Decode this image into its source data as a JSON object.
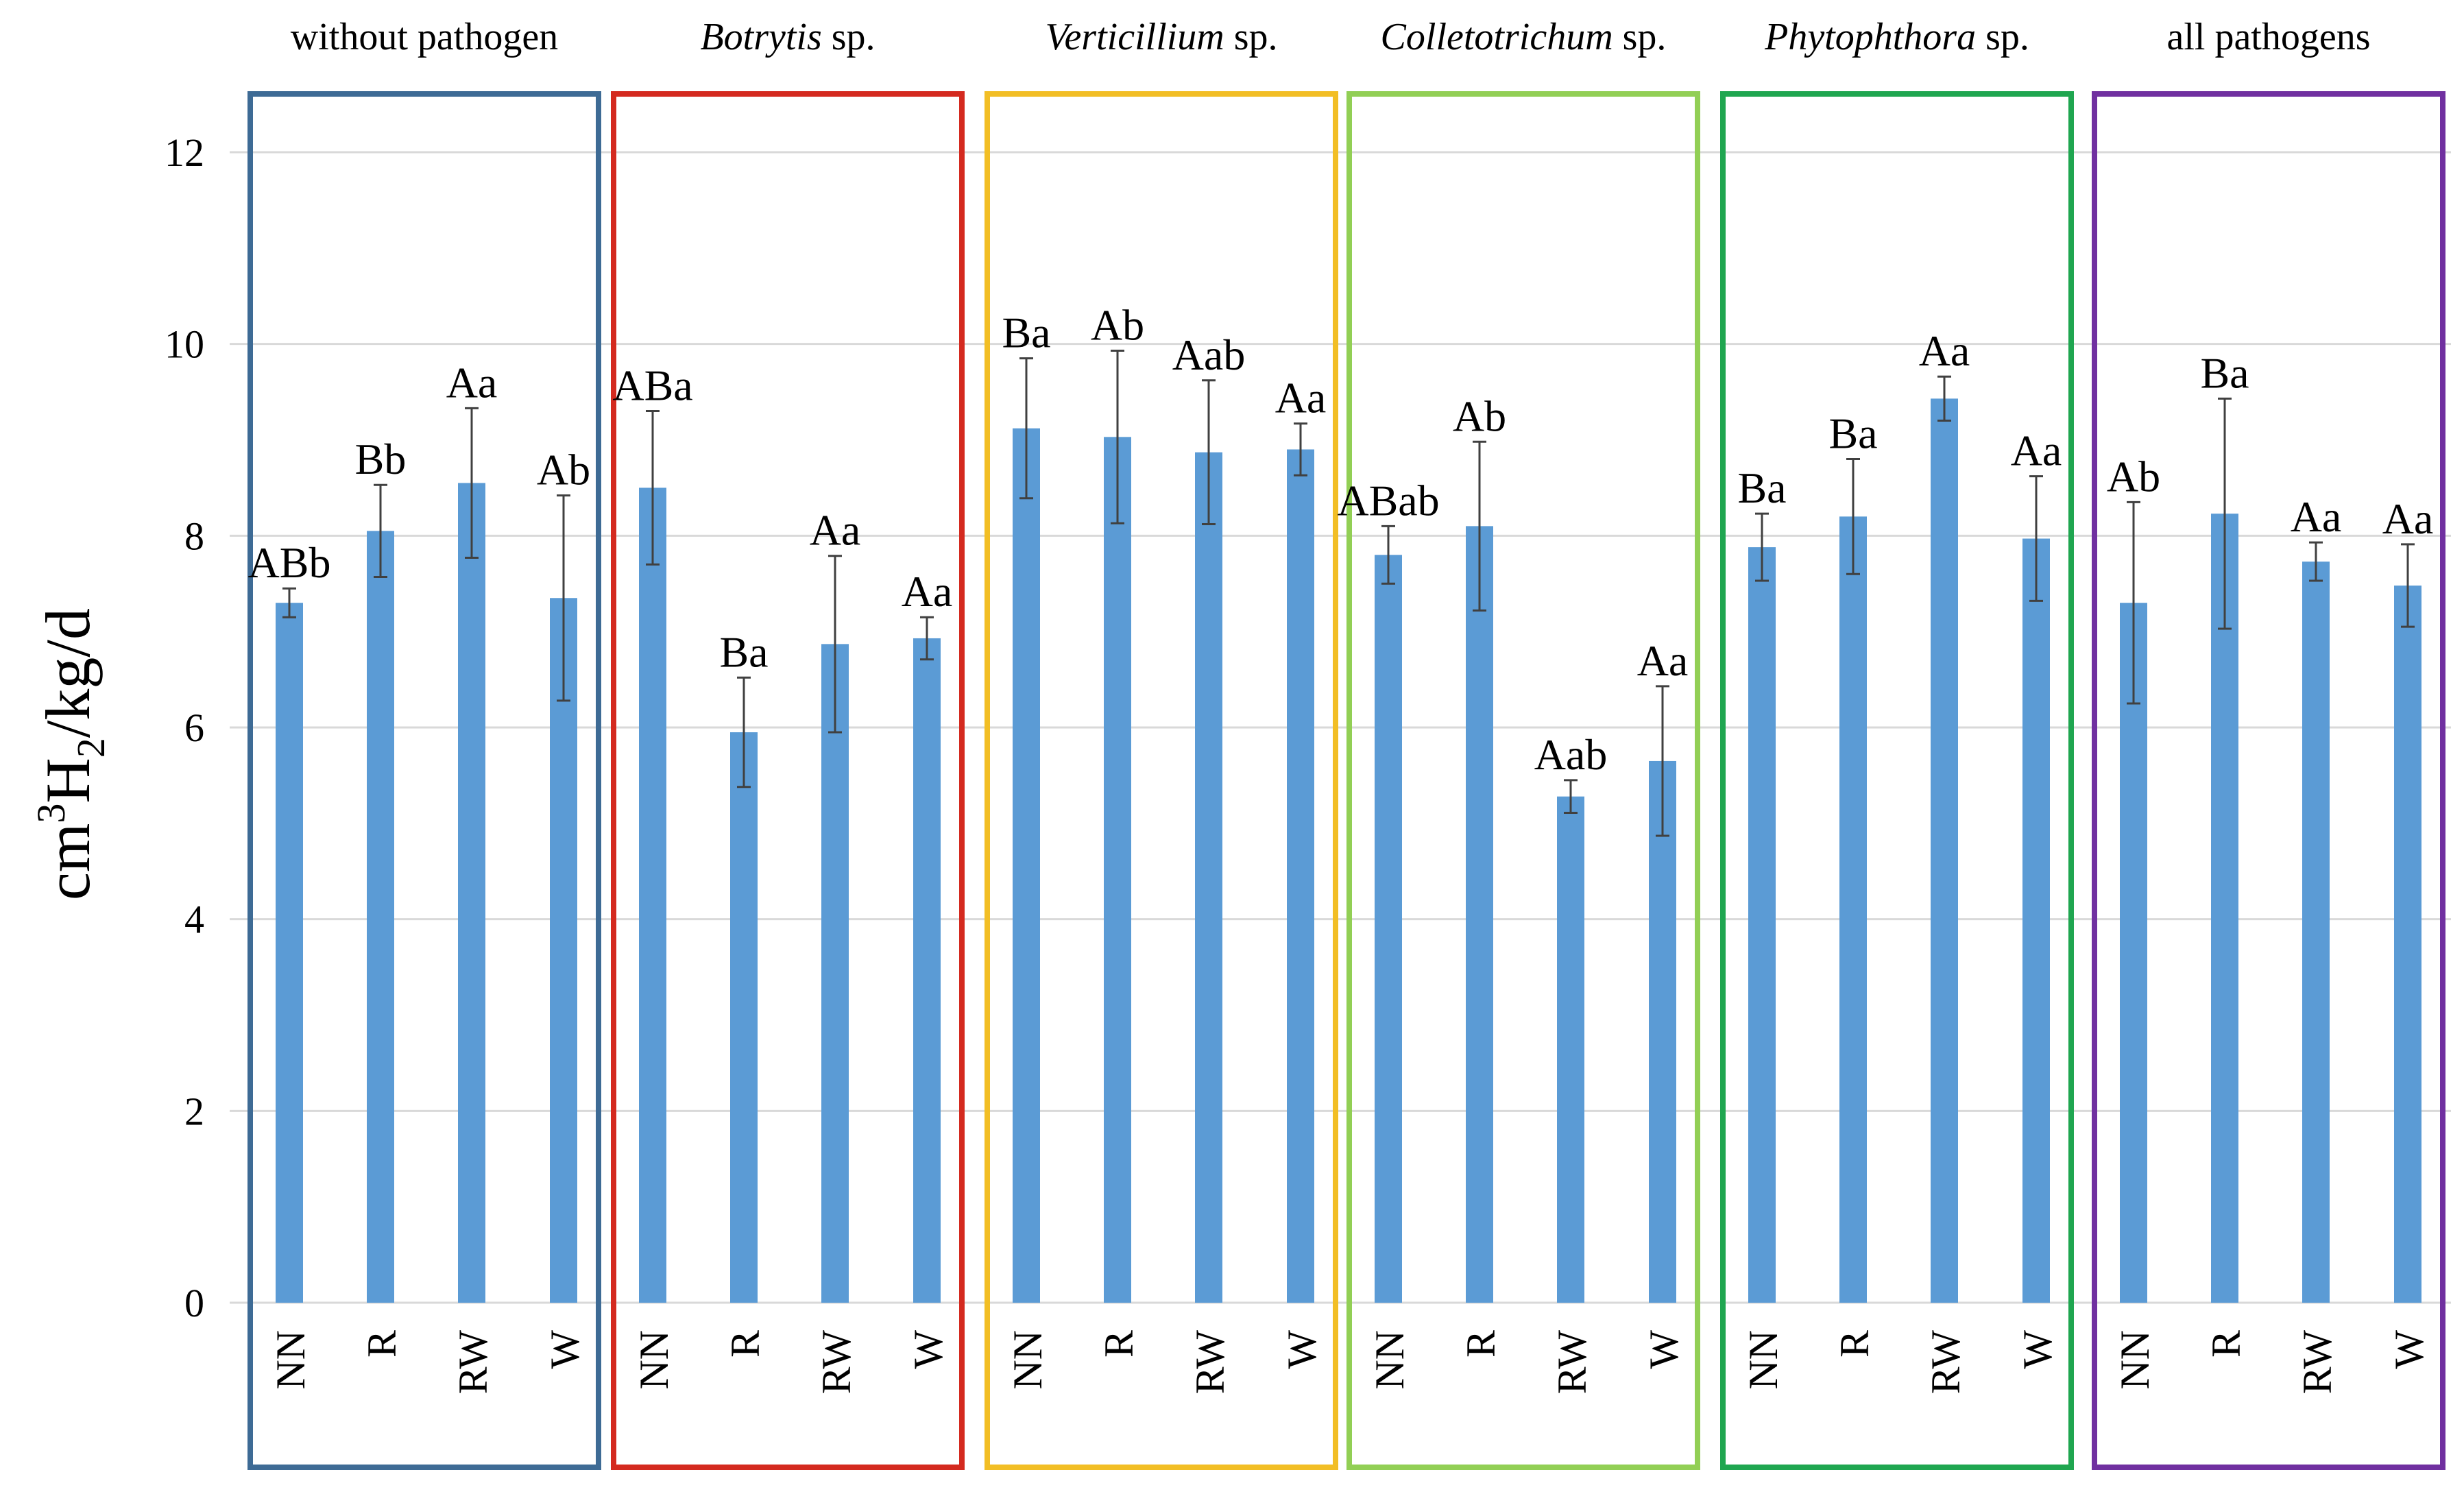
{
  "chart_data": {
    "type": "bar",
    "ylabel": "cm³H₂/kg/d",
    "ylabel_parts": {
      "prefix": "cm",
      "sup": "3",
      "mid": "H",
      "sub": "2",
      "suffix": "/kg/d"
    },
    "ylim": [
      0,
      12
    ],
    "yticks": [
      0,
      2,
      4,
      6,
      8,
      10,
      12
    ],
    "grid": true,
    "bar_color": "#5b9bd5",
    "groups": [
      {
        "title_italic": "",
        "title_plain": "without pathogen",
        "border_color": "#3e6b95",
        "categories": [
          "NN",
          "R",
          "RW",
          "W"
        ],
        "values": [
          7.3,
          8.05,
          8.55,
          7.35
        ],
        "errors": [
          0.15,
          0.48,
          0.78,
          1.07
        ],
        "labels": [
          "ABb",
          "Bb",
          "Aa",
          "Ab"
        ]
      },
      {
        "title_italic": "Botrytis",
        "title_plain": " sp.",
        "border_color": "#d42a1f",
        "categories": [
          "NN",
          "R",
          "RW",
          "W"
        ],
        "values": [
          8.5,
          5.95,
          6.87,
          6.93
        ],
        "errors": [
          0.8,
          0.57,
          0.92,
          0.22
        ],
        "labels": [
          "ABa",
          "Ba",
          "Aa",
          "Aa"
        ]
      },
      {
        "title_italic": "Verticillium",
        "title_plain": " sp.",
        "border_color": "#f2be25",
        "categories": [
          "NN",
          "R",
          "RW",
          "W"
        ],
        "values": [
          9.12,
          9.03,
          8.87,
          8.9
        ],
        "errors": [
          0.73,
          0.9,
          0.75,
          0.27
        ],
        "labels": [
          "Ba",
          "Ab",
          "Aab",
          "Aa"
        ]
      },
      {
        "title_italic": "Colletotrichum",
        "title_plain": " sp.",
        "border_color": "#92cf55",
        "categories": [
          "NN",
          "R",
          "RW",
          "W"
        ],
        "values": [
          7.8,
          8.1,
          5.28,
          5.65
        ],
        "errors": [
          0.3,
          0.88,
          0.17,
          0.78
        ],
        "labels": [
          "ABab",
          "Ab",
          "Aab",
          "Aa"
        ]
      },
      {
        "title_italic": "Phytophthora",
        "title_plain": " sp.",
        "border_color": "#1fa650",
        "categories": [
          "NN",
          "R",
          "RW",
          "W"
        ],
        "values": [
          7.88,
          8.2,
          9.43,
          7.97
        ],
        "errors": [
          0.35,
          0.6,
          0.23,
          0.65
        ],
        "labels": [
          "Ba",
          "Ba",
          "Aa",
          "Aa"
        ]
      },
      {
        "title_italic": "",
        "title_plain": "all pathogens",
        "border_color": "#7030a0",
        "categories": [
          "NN",
          "R",
          "RW",
          "W"
        ],
        "values": [
          7.3,
          8.23,
          7.73,
          7.48
        ],
        "errors": [
          1.05,
          1.2,
          0.2,
          0.43
        ],
        "labels": [
          "Ab",
          "Ba",
          "Aa",
          "Aa"
        ]
      }
    ]
  }
}
